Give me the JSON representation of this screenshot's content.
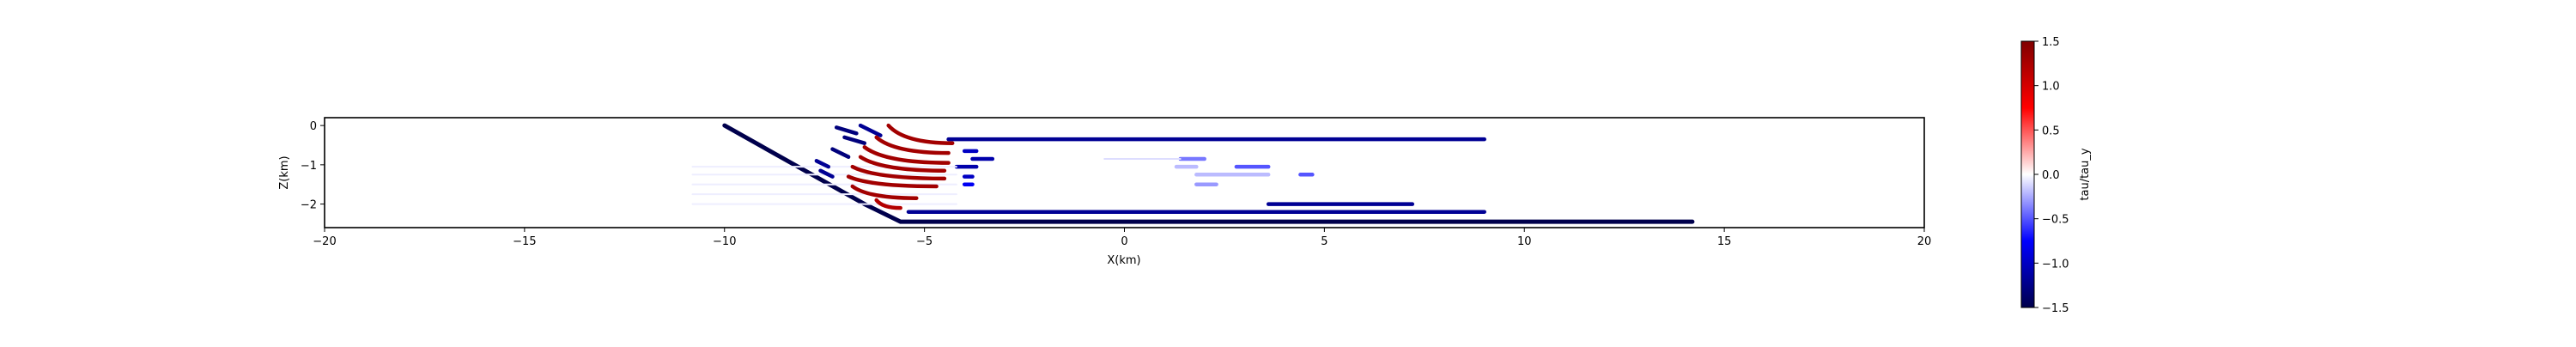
{
  "chart_data": {
    "type": "scatter",
    "title": "",
    "xlabel": "X(km)",
    "ylabel": "Z(km)",
    "xlim": [
      -20,
      20
    ],
    "ylim": [
      -2.6,
      0.2
    ],
    "xticks": [
      -20,
      -15,
      -10,
      -5,
      0,
      5,
      10,
      15,
      20
    ],
    "xtick_labels": [
      "−20",
      "−15",
      "−10",
      "−5",
      "0",
      "5",
      "10",
      "15",
      "20"
    ],
    "yticks": [
      0,
      -1,
      -2
    ],
    "ytick_labels": [
      "0",
      "−1",
      "−2"
    ],
    "grid": false,
    "colorbar": {
      "label": "tau/tau_y",
      "colormap": "seismic",
      "range": [
        -1.5,
        1.5
      ],
      "ticks": [
        1.5,
        1.0,
        0.5,
        0.0,
        -0.5,
        -1.0,
        -1.5
      ],
      "tick_labels": [
        "1.5",
        "1.0",
        "0.5",
        "0.0",
        "−0.5",
        "−1.0",
        "−1.5"
      ],
      "colors": [
        "#00004c",
        "#0000ff",
        "#ffffff",
        "#ff0000",
        "#800000"
      ]
    },
    "segments": [
      {
        "kind": "line",
        "points": [
          [
            -10,
            0
          ],
          [
            -6.5,
            -2.0
          ],
          [
            -5.6,
            -2.45
          ],
          [
            14.2,
            -2.45
          ]
        ],
        "value": -1.5
      },
      {
        "kind": "line",
        "points": [
          [
            -4.4,
            -0.35
          ],
          [
            9.0,
            -0.35
          ]
        ],
        "value": -1.2
      },
      {
        "kind": "line",
        "points": [
          [
            -5.4,
            -2.2
          ],
          [
            9.0,
            -2.2
          ]
        ],
        "value": -1.2
      },
      {
        "kind": "line",
        "points": [
          [
            3.6,
            -2.0
          ],
          [
            7.2,
            -2.0
          ]
        ],
        "value": -1.2
      },
      {
        "kind": "line",
        "points": [
          [
            -4.2,
            -1.05
          ],
          [
            -3.7,
            -1.05
          ]
        ],
        "value": -1.1
      },
      {
        "kind": "line",
        "points": [
          [
            -3.8,
            -0.85
          ],
          [
            -3.3,
            -0.85
          ]
        ],
        "value": -1.1
      },
      {
        "kind": "line",
        "points": [
          [
            -4.0,
            -0.65
          ],
          [
            -3.7,
            -0.65
          ]
        ],
        "value": -1.0
      },
      {
        "kind": "line",
        "points": [
          [
            -4.0,
            -1.3
          ],
          [
            -3.8,
            -1.3
          ]
        ],
        "value": -1.0
      },
      {
        "kind": "line",
        "points": [
          [
            -4.0,
            -1.5
          ],
          [
            -3.8,
            -1.5
          ]
        ],
        "value": -0.8
      },
      {
        "kind": "line",
        "points": [
          [
            1.4,
            -0.85
          ],
          [
            2.0,
            -0.85
          ]
        ],
        "value": -0.4
      },
      {
        "kind": "line",
        "points": [
          [
            2.8,
            -1.05
          ],
          [
            3.6,
            -1.05
          ]
        ],
        "value": -0.5
      },
      {
        "kind": "line",
        "points": [
          [
            4.4,
            -1.25
          ],
          [
            4.7,
            -1.25
          ]
        ],
        "value": -0.5
      },
      {
        "kind": "line",
        "points": [
          [
            1.8,
            -1.5
          ],
          [
            2.3,
            -1.5
          ]
        ],
        "value": -0.3
      },
      {
        "kind": "line",
        "points": [
          [
            1.3,
            -1.05
          ],
          [
            1.8,
            -1.05
          ]
        ],
        "value": -0.2
      },
      {
        "kind": "line",
        "points": [
          [
            1.8,
            -1.25
          ],
          [
            3.6,
            -1.25
          ]
        ],
        "value": -0.2
      },
      {
        "kind": "line",
        "points": [
          [
            -0.5,
            -0.85
          ],
          [
            1.4,
            -0.85
          ]
        ],
        "value": -0.1
      },
      {
        "kind": "line",
        "points": [
          [
            -10.8,
            -1.05
          ],
          [
            -4.2,
            -1.05
          ]
        ],
        "value": -0.05
      },
      {
        "kind": "line",
        "points": [
          [
            -10.8,
            -1.25
          ],
          [
            -4.2,
            -1.25
          ]
        ],
        "value": -0.05
      },
      {
        "kind": "line",
        "points": [
          [
            -10.8,
            -1.5
          ],
          [
            -4.2,
            -1.5
          ]
        ],
        "value": -0.05
      },
      {
        "kind": "line",
        "points": [
          [
            -10.8,
            -1.75
          ],
          [
            -4.2,
            -1.75
          ]
        ],
        "value": -0.05
      },
      {
        "kind": "line",
        "points": [
          [
            -10.8,
            -2.0
          ],
          [
            -4.2,
            -2.0
          ]
        ],
        "value": -0.05
      },
      {
        "kind": "line",
        "points": [
          [
            -7.2,
            -0.05
          ],
          [
            -6.7,
            -0.2
          ]
        ],
        "value": -1.3
      },
      {
        "kind": "line",
        "points": [
          [
            -7.0,
            -0.3
          ],
          [
            -6.5,
            -0.45
          ]
        ],
        "value": -1.3
      },
      {
        "kind": "line",
        "points": [
          [
            -7.3,
            -0.6
          ],
          [
            -6.9,
            -0.8
          ]
        ],
        "value": -1.3
      },
      {
        "kind": "line",
        "points": [
          [
            -7.6,
            -1.15
          ],
          [
            -7.3,
            -1.3
          ]
        ],
        "value": -1.2
      },
      {
        "kind": "line",
        "points": [
          [
            -7.7,
            -0.9
          ],
          [
            -7.4,
            -1.05
          ]
        ],
        "value": -1.2
      },
      {
        "kind": "line",
        "points": [
          [
            -6.6,
            0.0
          ],
          [
            -6.1,
            -0.25
          ]
        ],
        "value": -1.2
      },
      {
        "kind": "arc",
        "x0": -5.9,
        "z0": 0.0,
        "x1": -4.3,
        "z1": -0.45,
        "value": 1.3
      },
      {
        "kind": "arc",
        "x0": -6.2,
        "z0": -0.3,
        "x1": -4.4,
        "z1": -0.7,
        "value": 1.3
      },
      {
        "kind": "arc",
        "x0": -6.5,
        "z0": -0.55,
        "x1": -4.4,
        "z1": -0.95,
        "value": 1.3
      },
      {
        "kind": "arc",
        "x0": -6.6,
        "z0": -0.8,
        "x1": -4.5,
        "z1": -1.15,
        "value": 1.3
      },
      {
        "kind": "arc",
        "x0": -6.8,
        "z0": -1.05,
        "x1": -4.5,
        "z1": -1.35,
        "value": 1.3
      },
      {
        "kind": "arc",
        "x0": -6.9,
        "z0": -1.3,
        "x1": -4.7,
        "z1": -1.55,
        "value": 1.3
      },
      {
        "kind": "arc",
        "x0": -6.8,
        "z0": -1.55,
        "x1": -5.2,
        "z1": -1.85,
        "value": 1.3
      },
      {
        "kind": "arc",
        "x0": -6.2,
        "z0": -1.9,
        "x1": -5.6,
        "z1": -2.1,
        "value": 1.2
      }
    ]
  }
}
